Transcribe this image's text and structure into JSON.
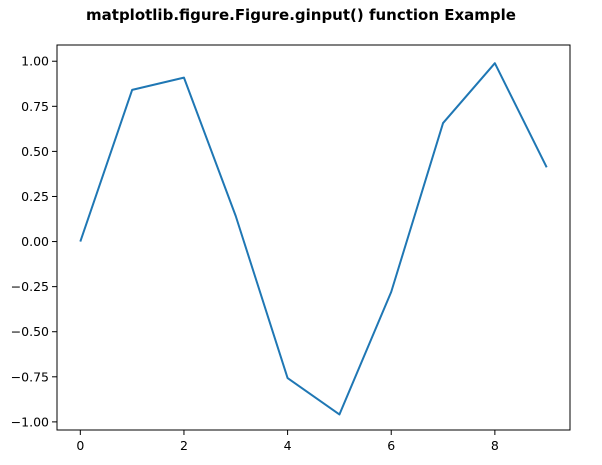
{
  "chart_data": {
    "type": "line",
    "title": "matplotlib.figure.Figure.ginput() function Example",
    "xlabel": "",
    "ylabel": "",
    "x": [
      0,
      1,
      2,
      3,
      4,
      5,
      6,
      7,
      8,
      9
    ],
    "series": [
      {
        "values": [
          0.0,
          0.841,
          0.909,
          0.141,
          -0.757,
          -0.959,
          -0.279,
          0.657,
          0.989,
          0.412
        ]
      }
    ],
    "xlim": [
      -0.45,
      9.45
    ],
    "ylim": [
      -1.045,
      1.09
    ],
    "xticks": [
      0,
      2,
      4,
      6,
      8
    ],
    "xtick_labels": [
      "0",
      "2",
      "4",
      "6",
      "8"
    ],
    "yticks": [
      1.0,
      0.75,
      0.5,
      0.25,
      0.0,
      -0.25,
      -0.5,
      -0.75,
      -1.0
    ],
    "ytick_labels": [
      "1.00",
      "0.75",
      "0.50",
      "0.25",
      "0.00",
      "−0.25",
      "−0.50",
      "−0.75",
      "−1.00"
    ],
    "grid": false,
    "colors": {
      "line": "#1f77b4",
      "axes": "#000000",
      "background": "#ffffff"
    }
  }
}
